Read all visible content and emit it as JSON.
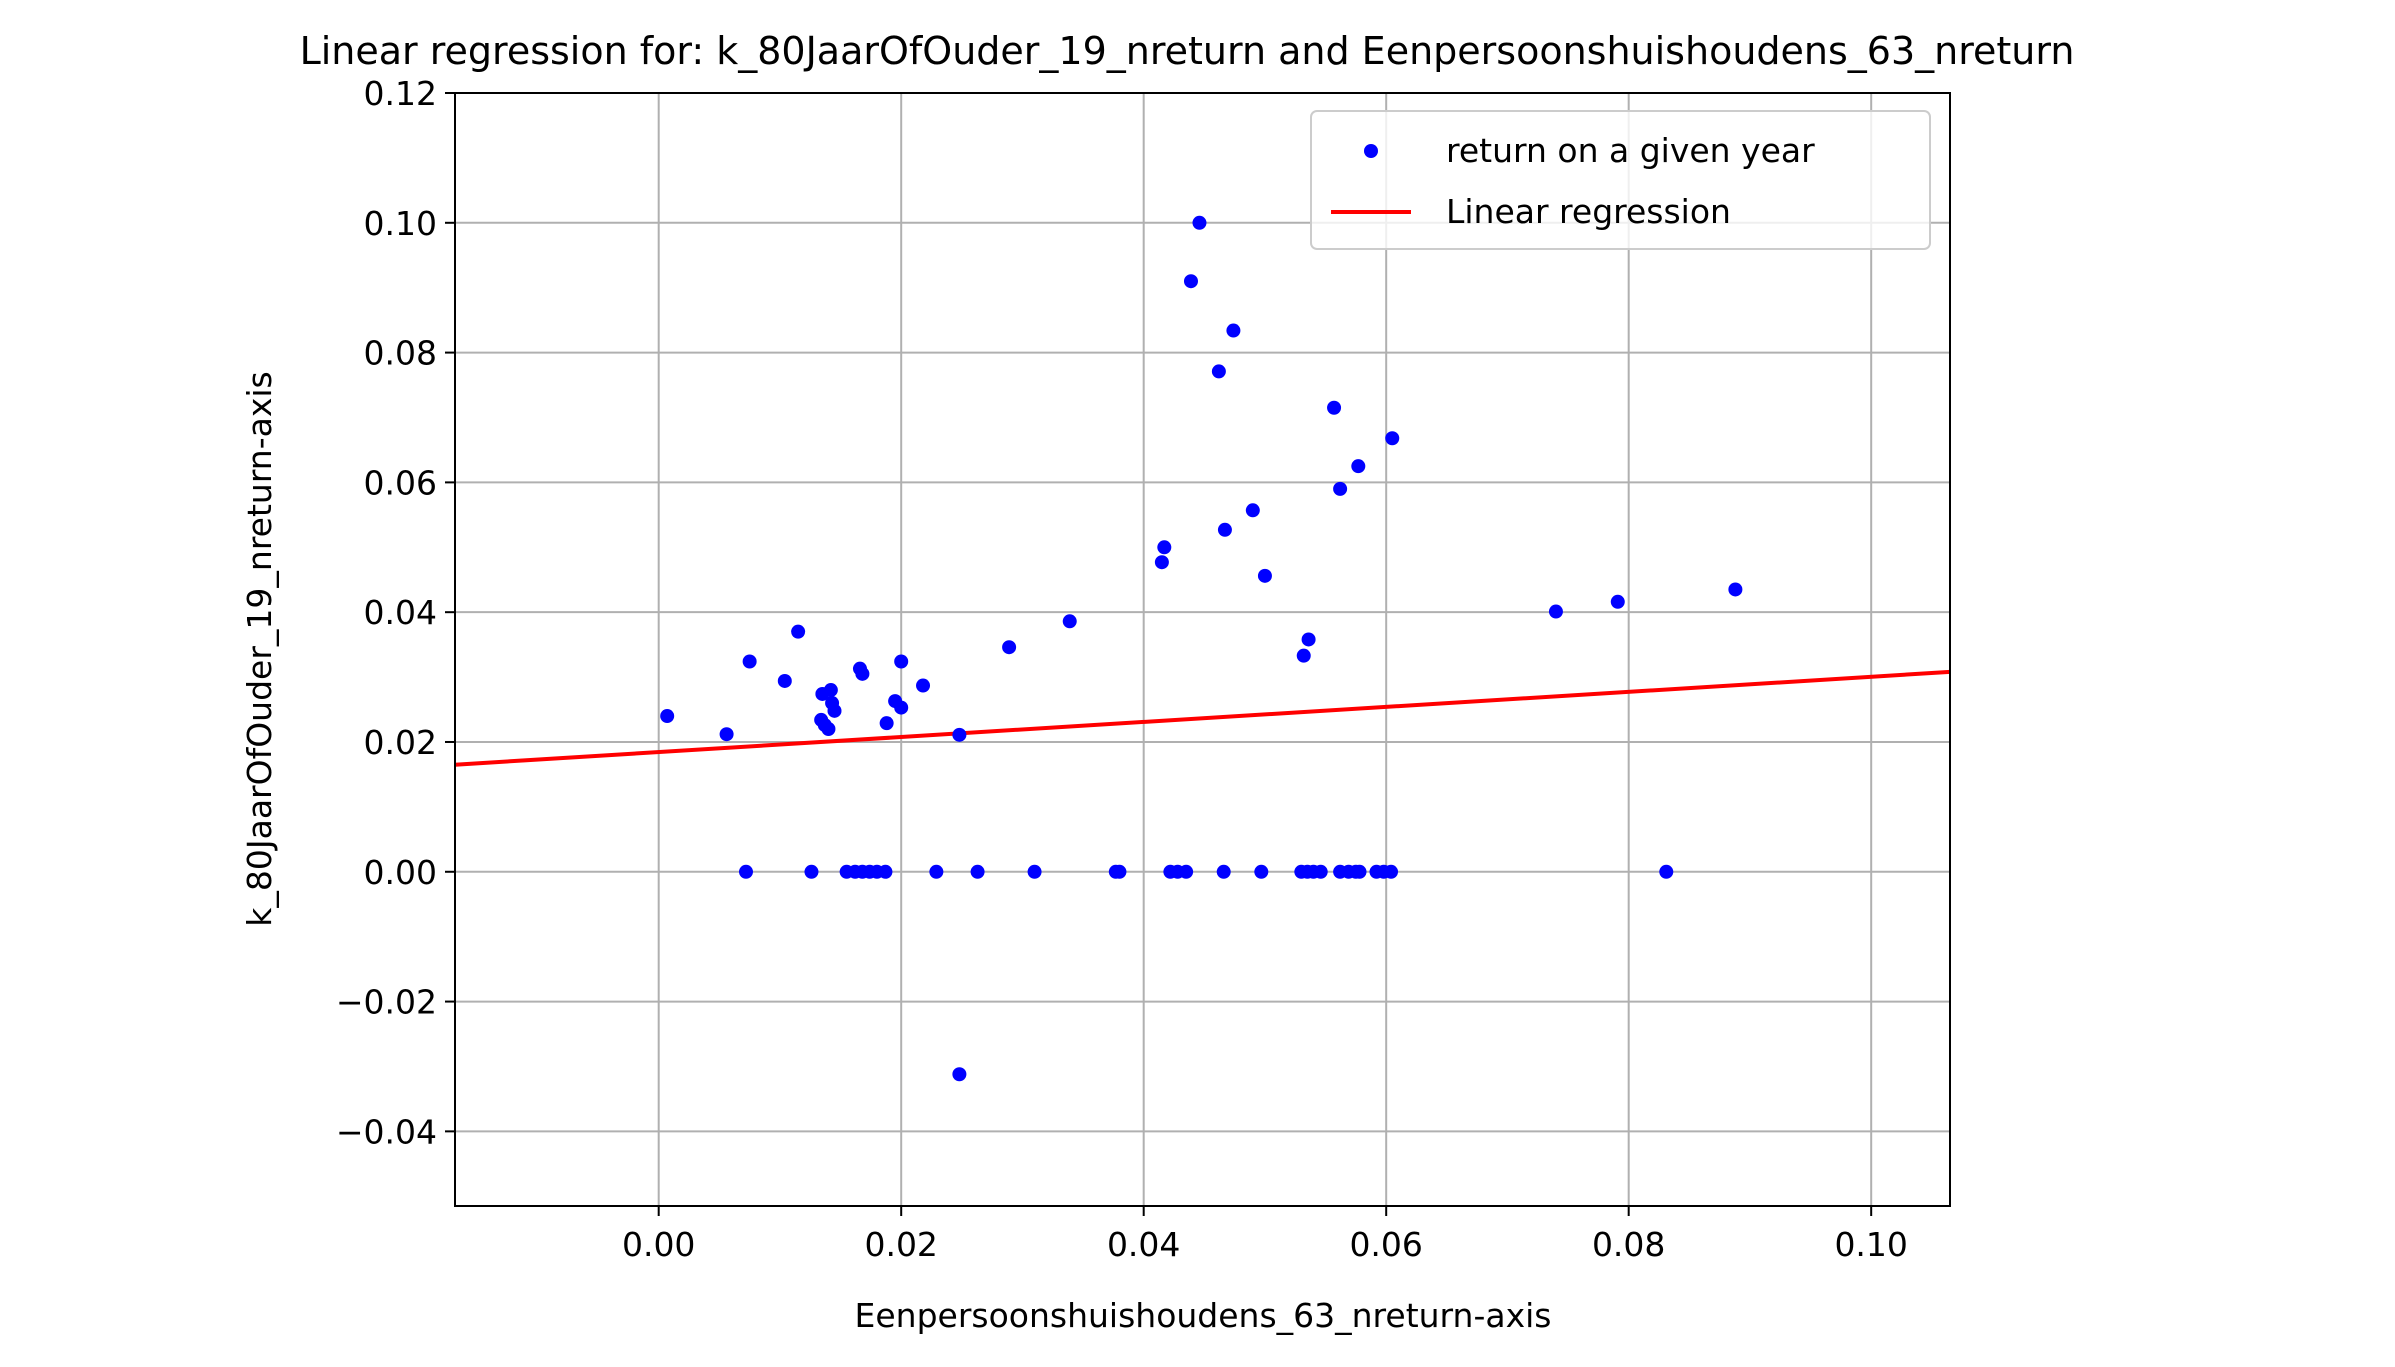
{
  "chart_data": {
    "type": "scatter",
    "title": "Linear regression for: k_80JaarOfOuder_19_nreturn and Eenpersoonshuishoudens_63_nreturn",
    "xlabel": "Eenpersoonshuishoudens_63_nreturn-axis",
    "ylabel": "k_80JaarOfOuder_19_nreturn-axis",
    "xlim": [
      -0.0168,
      0.1065
    ],
    "ylim": [
      -0.0515,
      0.12
    ],
    "xticks": [
      0.0,
      0.02,
      0.04,
      0.06,
      0.08,
      0.1
    ],
    "xtick_labels": [
      "0.00",
      "0.02",
      "0.04",
      "0.06",
      "0.08",
      "0.10"
    ],
    "yticks": [
      -0.04,
      -0.02,
      0.0,
      0.02,
      0.04,
      0.06,
      0.08,
      0.1,
      0.12
    ],
    "ytick_labels": [
      "−0.04",
      "−0.02",
      "0.00",
      "0.02",
      "0.04",
      "0.06",
      "0.08",
      "0.10",
      "0.12"
    ],
    "grid": true,
    "legend_position": "top-right",
    "colors": {
      "points": "#0000ff",
      "line": "#ff0000",
      "grid": "#b0b0b0",
      "legend_border": "#cccccc"
    },
    "series": [
      {
        "name": "return on a given year",
        "kind": "scatter",
        "points": [
          [
            0.0007,
            0.024
          ],
          [
            0.0056,
            0.0212
          ],
          [
            0.0075,
            0.0324
          ],
          [
            0.0104,
            0.0294
          ],
          [
            0.0115,
            0.037
          ],
          [
            0.0135,
            0.0274
          ],
          [
            0.0134,
            0.0234
          ],
          [
            0.0137,
            0.0226
          ],
          [
            0.014,
            0.022
          ],
          [
            0.0142,
            0.028
          ],
          [
            0.0143,
            0.026
          ],
          [
            0.0145,
            0.0248
          ],
          [
            0.0166,
            0.0313
          ],
          [
            0.0168,
            0.0305
          ],
          [
            0.0188,
            0.0229
          ],
          [
            0.0195,
            0.0263
          ],
          [
            0.02,
            0.0324
          ],
          [
            0.02,
            0.0253
          ],
          [
            0.0218,
            0.0287
          ],
          [
            0.0248,
            0.0211
          ],
          [
            0.0289,
            0.0346
          ],
          [
            0.0339,
            0.0386
          ],
          [
            0.0415,
            0.0477
          ],
          [
            0.0417,
            0.05
          ],
          [
            0.0439,
            0.091
          ],
          [
            0.0446,
            0.1
          ],
          [
            0.0462,
            0.0771
          ],
          [
            0.0467,
            0.0527
          ],
          [
            0.0474,
            0.0834
          ],
          [
            0.049,
            0.0557
          ],
          [
            0.05,
            0.0456
          ],
          [
            0.0532,
            0.0333
          ],
          [
            0.0536,
            0.0358
          ],
          [
            0.0557,
            0.0715
          ],
          [
            0.0562,
            0.059
          ],
          [
            0.0577,
            0.0625
          ],
          [
            0.0605,
            0.0668
          ],
          [
            0.074,
            0.0401
          ],
          [
            0.0791,
            0.0416
          ],
          [
            0.0888,
            0.0435
          ],
          [
            0.0072,
            0.0
          ],
          [
            0.0126,
            0.0
          ],
          [
            0.0155,
            0.0
          ],
          [
            0.0162,
            0.0
          ],
          [
            0.0168,
            0.0
          ],
          [
            0.0174,
            0.0
          ],
          [
            0.018,
            0.0
          ],
          [
            0.0187,
            0.0
          ],
          [
            0.0229,
            0.0
          ],
          [
            0.0263,
            0.0
          ],
          [
            0.031,
            0.0
          ],
          [
            0.0377,
            0.0
          ],
          [
            0.038,
            0.0
          ],
          [
            0.0422,
            0.0
          ],
          [
            0.0428,
            0.0
          ],
          [
            0.0435,
            0.0
          ],
          [
            0.0466,
            0.0
          ],
          [
            0.0497,
            0.0
          ],
          [
            0.053,
            0.0
          ],
          [
            0.0535,
            0.0
          ],
          [
            0.054,
            0.0
          ],
          [
            0.0546,
            0.0
          ],
          [
            0.0562,
            0.0
          ],
          [
            0.0569,
            0.0
          ],
          [
            0.0575,
            0.0
          ],
          [
            0.0578,
            0.0
          ],
          [
            0.0592,
            0.0
          ],
          [
            0.0598,
            0.0
          ],
          [
            0.0604,
            0.0
          ],
          [
            0.0831,
            0.0
          ],
          [
            0.0248,
            -0.0312
          ]
        ]
      },
      {
        "name": "Linear regression",
        "kind": "line",
        "points": [
          [
            -0.0168,
            0.0165
          ],
          [
            0.1065,
            0.0308
          ]
        ]
      }
    ]
  }
}
